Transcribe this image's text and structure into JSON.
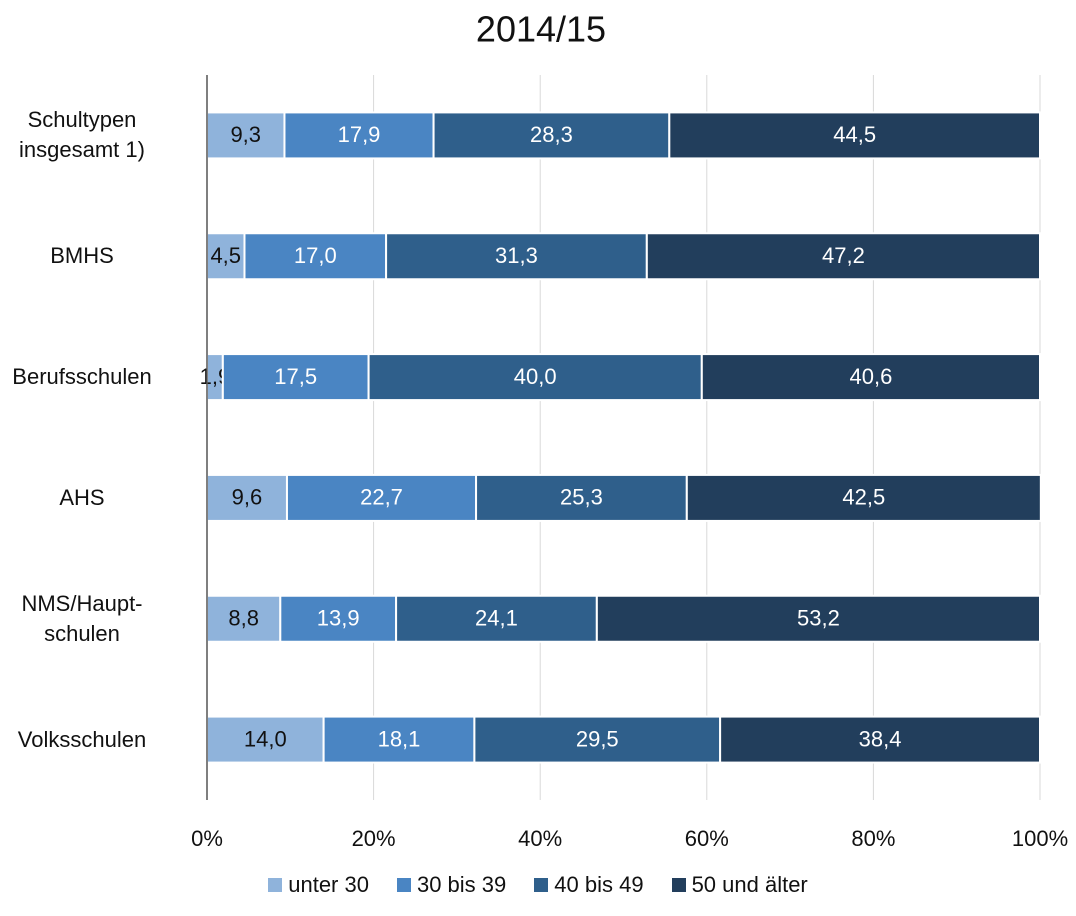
{
  "chart_data": {
    "type": "stacked_barh",
    "title": "2014/15",
    "categories": [
      "Schultypen\ninsgesamt 1)",
      "BMHS",
      "Berufsschulen",
      "AHS",
      "NMS/Haupt-\nschulen",
      "Volksschulen"
    ],
    "series": [
      {
        "name": "unter 30",
        "color": "#8fb3db",
        "values": [
          9.3,
          4.5,
          1.9,
          9.6,
          8.8,
          14.0
        ],
        "value_labels": [
          "9,3",
          "4,5",
          "1,9",
          "9,6",
          "8,8",
          "14,0"
        ]
      },
      {
        "name": "30 bis 39",
        "color": "#4a85c3",
        "values": [
          17.9,
          17.0,
          17.5,
          22.7,
          13.9,
          18.1
        ],
        "value_labels": [
          "17,9",
          "17,0",
          "17,5",
          "22,7",
          "13,9",
          "18,1"
        ]
      },
      {
        "name": "40 bis 49",
        "color": "#2f5f8b",
        "values": [
          28.3,
          31.3,
          40.0,
          25.3,
          24.1,
          29.5
        ],
        "value_labels": [
          "28,3",
          "31,3",
          "40,0",
          "25,3",
          "24,1",
          "29,5"
        ]
      },
      {
        "name": "50 und älter",
        "color": "#223e5c",
        "values": [
          44.5,
          47.2,
          40.6,
          42.5,
          53.2,
          38.4
        ],
        "value_labels": [
          "44,5",
          "47,2",
          "40,6",
          "42,5",
          "53,2",
          "38,4"
        ]
      }
    ],
    "xlim": [
      0,
      100
    ],
    "xticks": [
      {
        "value": 0,
        "label": "0%"
      },
      {
        "value": 20,
        "label": "20%"
      },
      {
        "value": 40,
        "label": "40%"
      },
      {
        "value": 60,
        "label": "60%"
      },
      {
        "value": 80,
        "label": "80%"
      },
      {
        "value": 100,
        "label": "100%"
      }
    ],
    "grid": true,
    "legend": "bottom"
  }
}
